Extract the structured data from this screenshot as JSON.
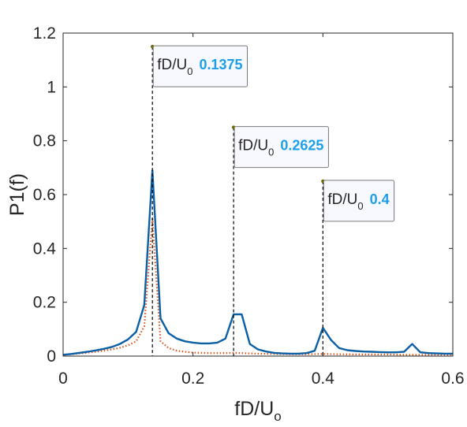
{
  "chart_data": {
    "type": "line",
    "xlabel": "fD/U",
    "xlabel_sub": "o",
    "ylabel": "P1(f)",
    "xlim": [
      0,
      0.6
    ],
    "ylim": [
      0,
      1.2
    ],
    "x_ticks": [
      "0",
      "0.2",
      "0.4",
      "0.6"
    ],
    "y_ticks": [
      "0",
      "0.2",
      "0.4",
      "0.6",
      "0.8",
      "1",
      "1.2"
    ],
    "grid": false,
    "series": [
      {
        "style": "solid",
        "color": "#0b5fa5",
        "x": [
          0,
          0.0125,
          0.025,
          0.0375,
          0.05,
          0.0625,
          0.075,
          0.0875,
          0.1,
          0.1125,
          0.125,
          0.1375,
          0.15,
          0.1625,
          0.175,
          0.1875,
          0.2,
          0.2125,
          0.225,
          0.2375,
          0.25,
          0.2625,
          0.275,
          0.2875,
          0.3,
          0.3125,
          0.325,
          0.3375,
          0.35,
          0.3625,
          0.375,
          0.3875,
          0.4,
          0.4125,
          0.425,
          0.4375,
          0.45,
          0.4625,
          0.475,
          0.4875,
          0.5,
          0.5125,
          0.525,
          0.5375,
          0.55,
          0.5625,
          0.575,
          0.5875,
          0.6
        ],
        "y": [
          0.005,
          0.008,
          0.012,
          0.016,
          0.021,
          0.027,
          0.034,
          0.045,
          0.062,
          0.09,
          0.19,
          0.69,
          0.14,
          0.085,
          0.065,
          0.055,
          0.05,
          0.047,
          0.047,
          0.05,
          0.065,
          0.155,
          0.155,
          0.045,
          0.025,
          0.017,
          0.012,
          0.01,
          0.009,
          0.009,
          0.011,
          0.02,
          0.105,
          0.06,
          0.03,
          0.022,
          0.019,
          0.017,
          0.016,
          0.015,
          0.014,
          0.014,
          0.016,
          0.045,
          0.014,
          0.011,
          0.01,
          0.009,
          0.009
        ]
      },
      {
        "style": "dotted",
        "color": "#d95319",
        "x": [
          0,
          0.0125,
          0.025,
          0.0375,
          0.05,
          0.0625,
          0.075,
          0.0875,
          0.1,
          0.1125,
          0.125,
          0.1375,
          0.15,
          0.1625,
          0.175,
          0.1875,
          0.2,
          0.2125,
          0.225,
          0.2375,
          0.25,
          0.2625,
          0.275,
          0.2875,
          0.3,
          0.325,
          0.35,
          0.375,
          0.4,
          0.425,
          0.45,
          0.475,
          0.5,
          0.525,
          0.55,
          0.575,
          0.6
        ],
        "y": [
          0.005,
          0.007,
          0.01,
          0.013,
          0.016,
          0.02,
          0.025,
          0.031,
          0.04,
          0.055,
          0.11,
          0.51,
          0.055,
          0.03,
          0.02,
          0.016,
          0.013,
          0.012,
          0.011,
          0.011,
          0.011,
          0.012,
          0.011,
          0.01,
          0.009,
          0.008,
          0.007,
          0.007,
          0.008,
          0.007,
          0.006,
          0.006,
          0.006,
          0.005,
          0.005,
          0.005,
          0.005
        ]
      }
    ],
    "markers": [
      {
        "x": 0.1375,
        "y": 1.15,
        "name": "fD/U",
        "sub": "0",
        "value": "0.1375"
      },
      {
        "x": 0.2625,
        "y": 0.85,
        "name": "fD/U",
        "sub": "0",
        "value": "0.2625"
      },
      {
        "x": 0.4,
        "y": 0.65,
        "name": "fD/U",
        "sub": "0",
        "value": "0.4"
      }
    ],
    "marker_value_color": "#1a9fe8"
  }
}
